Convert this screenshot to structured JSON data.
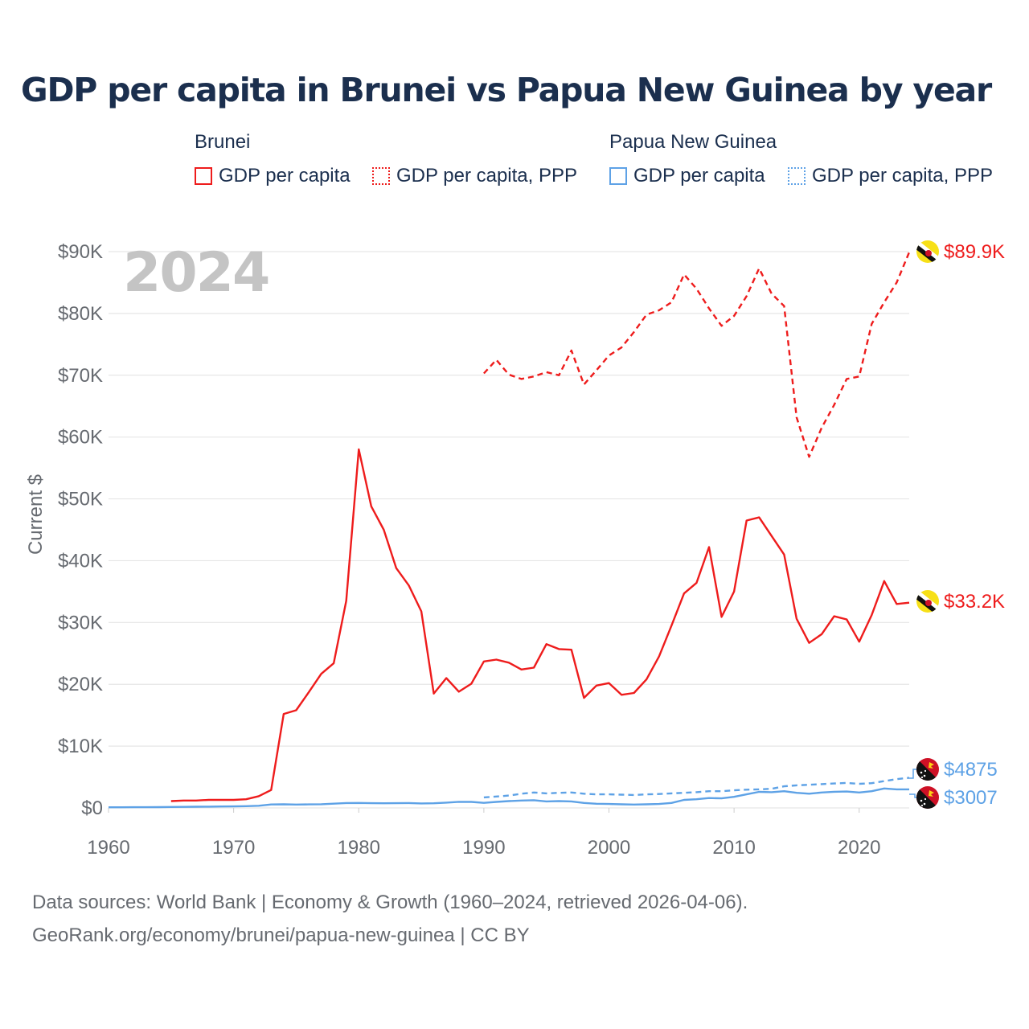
{
  "title": "GDP per capita in Brunei vs Papua New Guinea by year",
  "legend": {
    "brunei": {
      "title": "Brunei",
      "gdp": "GDP per capita",
      "ppp": "GDP per capita, PPP"
    },
    "png": {
      "title": "Papua New Guinea",
      "gdp": "GDP per capita",
      "ppp": "GDP per capita, PPP"
    }
  },
  "colors": {
    "brunei": "#ee1c1c",
    "png": "#5ea2e6",
    "grid": "#e6e6e6",
    "axis_text": "#666a70",
    "year_watermark": "#c4c4c4"
  },
  "source": {
    "line1": "Data sources: World Bank | Economy & Growth (1960–2024, retrieved 2026-04-06).",
    "line2": "GeoRank.org/economy/brunei/papua-new-guinea | CC BY"
  },
  "chart_data": {
    "type": "line",
    "year_label": "2024",
    "ylabel": "Current $",
    "xlim": [
      1960,
      2024
    ],
    "ylim": [
      0,
      90000
    ],
    "x_ticks": [
      1960,
      1970,
      1980,
      1990,
      2000,
      2010,
      2020
    ],
    "x_tick_labels": [
      "1960",
      "1970",
      "1980",
      "1990",
      "2000",
      "2010",
      "2020"
    ],
    "y_ticks": [
      0,
      10000,
      20000,
      30000,
      40000,
      50000,
      60000,
      70000,
      80000,
      90000
    ],
    "y_tick_labels": [
      "$0",
      "$10K",
      "$20K",
      "$30K",
      "$40K",
      "$50K",
      "$60K",
      "$70K",
      "$80K",
      "$90K"
    ],
    "series": [
      {
        "name": "Brunei GDP per capita",
        "country": "brunei",
        "style": "solid",
        "end_label": "$33.2K",
        "points": [
          [
            1965,
            1100
          ],
          [
            1966,
            1200
          ],
          [
            1967,
            1200
          ],
          [
            1968,
            1300
          ],
          [
            1969,
            1300
          ],
          [
            1970,
            1300
          ],
          [
            1971,
            1400
          ],
          [
            1972,
            1900
          ],
          [
            1973,
            2900
          ],
          [
            1974,
            15200
          ],
          [
            1975,
            15800
          ],
          [
            1976,
            18700
          ],
          [
            1977,
            21700
          ],
          [
            1978,
            23400
          ],
          [
            1979,
            33500
          ],
          [
            1980,
            58000
          ],
          [
            1981,
            48800
          ],
          [
            1982,
            45000
          ],
          [
            1983,
            38800
          ],
          [
            1984,
            36000
          ],
          [
            1985,
            31800
          ],
          [
            1986,
            18500
          ],
          [
            1987,
            21000
          ],
          [
            1988,
            18800
          ],
          [
            1989,
            20100
          ],
          [
            1990,
            23700
          ],
          [
            1991,
            24000
          ],
          [
            1992,
            23500
          ],
          [
            1993,
            22400
          ],
          [
            1994,
            22700
          ],
          [
            1995,
            26500
          ],
          [
            1996,
            25700
          ],
          [
            1997,
            25600
          ],
          [
            1998,
            17800
          ],
          [
            1999,
            19800
          ],
          [
            2000,
            20200
          ],
          [
            2001,
            18300
          ],
          [
            2002,
            18600
          ],
          [
            2003,
            20800
          ],
          [
            2004,
            24500
          ],
          [
            2005,
            29500
          ],
          [
            2006,
            34700
          ],
          [
            2007,
            36400
          ],
          [
            2008,
            42200
          ],
          [
            2009,
            30900
          ],
          [
            2010,
            35000
          ],
          [
            2011,
            46500
          ],
          [
            2012,
            47000
          ],
          [
            2013,
            44000
          ],
          [
            2014,
            41000
          ],
          [
            2015,
            30600
          ],
          [
            2016,
            26700
          ],
          [
            2017,
            28100
          ],
          [
            2018,
            31000
          ],
          [
            2019,
            30500
          ],
          [
            2020,
            26900
          ],
          [
            2021,
            31200
          ],
          [
            2022,
            36700
          ],
          [
            2023,
            33000
          ],
          [
            2024,
            33200
          ]
        ]
      },
      {
        "name": "Brunei GDP per capita, PPP",
        "country": "brunei",
        "style": "dashed",
        "end_label": "$89.9K",
        "points": [
          [
            1990,
            70300
          ],
          [
            1991,
            72500
          ],
          [
            1992,
            70100
          ],
          [
            1993,
            69400
          ],
          [
            1994,
            69800
          ],
          [
            1995,
            70500
          ],
          [
            1996,
            70000
          ],
          [
            1997,
            74000
          ],
          [
            1998,
            68500
          ],
          [
            1999,
            70800
          ],
          [
            2000,
            73200
          ],
          [
            2001,
            74500
          ],
          [
            2002,
            77000
          ],
          [
            2003,
            79800
          ],
          [
            2004,
            80500
          ],
          [
            2005,
            81800
          ],
          [
            2006,
            86300
          ],
          [
            2007,
            84000
          ],
          [
            2008,
            80800
          ],
          [
            2009,
            78000
          ],
          [
            2010,
            79600
          ],
          [
            2011,
            82800
          ],
          [
            2012,
            87300
          ],
          [
            2013,
            83200
          ],
          [
            2014,
            81200
          ],
          [
            2015,
            63200
          ],
          [
            2016,
            56800
          ],
          [
            2017,
            61500
          ],
          [
            2018,
            65200
          ],
          [
            2019,
            69400
          ],
          [
            2020,
            69800
          ],
          [
            2021,
            78300
          ],
          [
            2022,
            81800
          ],
          [
            2023,
            85000
          ],
          [
            2024,
            89900
          ]
        ]
      },
      {
        "name": "Papua New Guinea GDP per capita",
        "country": "png",
        "style": "solid",
        "end_label": "$3007",
        "points": [
          [
            1960,
            100
          ],
          [
            1961,
            110
          ],
          [
            1962,
            115
          ],
          [
            1963,
            120
          ],
          [
            1964,
            130
          ],
          [
            1965,
            150
          ],
          [
            1966,
            170
          ],
          [
            1967,
            190
          ],
          [
            1968,
            210
          ],
          [
            1969,
            230
          ],
          [
            1970,
            250
          ],
          [
            1971,
            290
          ],
          [
            1972,
            350
          ],
          [
            1973,
            560
          ],
          [
            1974,
            580
          ],
          [
            1975,
            540
          ],
          [
            1976,
            570
          ],
          [
            1977,
            600
          ],
          [
            1978,
            690
          ],
          [
            1979,
            790
          ],
          [
            1980,
            800
          ],
          [
            1981,
            770
          ],
          [
            1982,
            760
          ],
          [
            1983,
            770
          ],
          [
            1984,
            790
          ],
          [
            1985,
            730
          ],
          [
            1986,
            750
          ],
          [
            1987,
            860
          ],
          [
            1988,
            990
          ],
          [
            1989,
            970
          ],
          [
            1990,
            820
          ],
          [
            1991,
            980
          ],
          [
            1992,
            1100
          ],
          [
            1993,
            1200
          ],
          [
            1994,
            1250
          ],
          [
            1995,
            1050
          ],
          [
            1996,
            1100
          ],
          [
            1997,
            1050
          ],
          [
            1998,
            800
          ],
          [
            1999,
            680
          ],
          [
            2000,
            640
          ],
          [
            2001,
            590
          ],
          [
            2002,
            540
          ],
          [
            2003,
            580
          ],
          [
            2004,
            640
          ],
          [
            2005,
            800
          ],
          [
            2006,
            1300
          ],
          [
            2007,
            1400
          ],
          [
            2008,
            1600
          ],
          [
            2009,
            1550
          ],
          [
            2010,
            1800
          ],
          [
            2011,
            2200
          ],
          [
            2012,
            2600
          ],
          [
            2013,
            2550
          ],
          [
            2014,
            2700
          ],
          [
            2015,
            2450
          ],
          [
            2016,
            2300
          ],
          [
            2017,
            2500
          ],
          [
            2018,
            2620
          ],
          [
            2019,
            2650
          ],
          [
            2020,
            2500
          ],
          [
            2021,
            2700
          ],
          [
            2022,
            3150
          ],
          [
            2023,
            3000
          ],
          [
            2024,
            3007
          ]
        ]
      },
      {
        "name": "Papua New Guinea GDP per capita, PPP",
        "country": "png",
        "style": "dashed",
        "end_label": "$4875",
        "points": [
          [
            1990,
            1700
          ],
          [
            1991,
            1850
          ],
          [
            1992,
            2000
          ],
          [
            1993,
            2300
          ],
          [
            1994,
            2500
          ],
          [
            1995,
            2350
          ],
          [
            1996,
            2450
          ],
          [
            1997,
            2500
          ],
          [
            1998,
            2300
          ],
          [
            1999,
            2200
          ],
          [
            2000,
            2200
          ],
          [
            2001,
            2150
          ],
          [
            2002,
            2100
          ],
          [
            2003,
            2200
          ],
          [
            2004,
            2250
          ],
          [
            2005,
            2350
          ],
          [
            2006,
            2450
          ],
          [
            2007,
            2550
          ],
          [
            2008,
            2700
          ],
          [
            2009,
            2700
          ],
          [
            2010,
            2850
          ],
          [
            2011,
            2950
          ],
          [
            2012,
            3000
          ],
          [
            2013,
            3100
          ],
          [
            2014,
            3500
          ],
          [
            2015,
            3650
          ],
          [
            2016,
            3750
          ],
          [
            2017,
            3850
          ],
          [
            2018,
            3950
          ],
          [
            2019,
            4050
          ],
          [
            2020,
            3900
          ],
          [
            2021,
            4000
          ],
          [
            2022,
            4350
          ],
          [
            2023,
            4650
          ],
          [
            2024,
            4875
          ]
        ]
      }
    ]
  }
}
